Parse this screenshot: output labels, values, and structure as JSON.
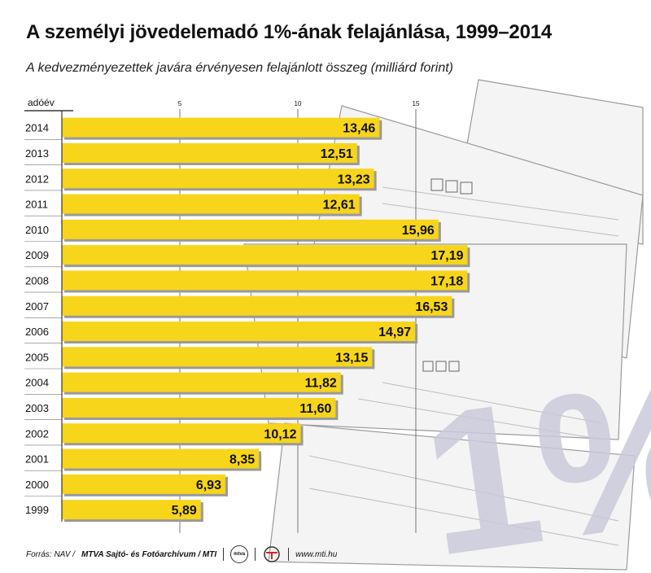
{
  "title": "A személyi jövedelemadó 1%-ának felajánlása, 1999–2014",
  "subtitle": "A kedvezményezettek javára érvényesen felajánlott összeg (milliárd forint)",
  "footer": {
    "source_prefix": "Forrás: NAV /",
    "source_bold": "MTVA Sajtó- és Fotóarchívum / MTI",
    "logo1_text": "mtva",
    "url": "www.mti.hu"
  },
  "background_text": "1%",
  "colors": {
    "bar": "#f7d51b",
    "bar_shadow": "#9a9a9a",
    "text": "#111111",
    "grid": "#555555"
  },
  "chart_data": {
    "type": "bar",
    "orientation": "horizontal",
    "title": "A személyi jövedelemadó 1%-ának felajánlása, 1999–2014",
    "subtitle": "A kedvezményezettek javára érvényesen felajánlott összeg (milliárd forint)",
    "ylabel": "adóév",
    "xlabel": "",
    "xlim": [
      0,
      15
    ],
    "xticks": [
      5,
      10,
      15
    ],
    "grid": true,
    "categories": [
      "2014",
      "2013",
      "2012",
      "2011",
      "2010",
      "2009",
      "2008",
      "2007",
      "2006",
      "2005",
      "2004",
      "2003",
      "2002",
      "2001",
      "2000",
      "1999"
    ],
    "values": [
      13.46,
      12.51,
      13.23,
      12.61,
      15.96,
      17.19,
      17.18,
      16.53,
      14.97,
      13.15,
      11.82,
      11.6,
      10.12,
      8.35,
      6.93,
      5.89
    ],
    "value_labels": [
      "13,46",
      "12,51",
      "13,23",
      "12,61",
      "15,96",
      "17,19",
      "17,18",
      "16,53",
      "14,97",
      "13,15",
      "11,82",
      "11,60",
      "10,12",
      "8,35",
      "6,93",
      "5,89"
    ]
  }
}
